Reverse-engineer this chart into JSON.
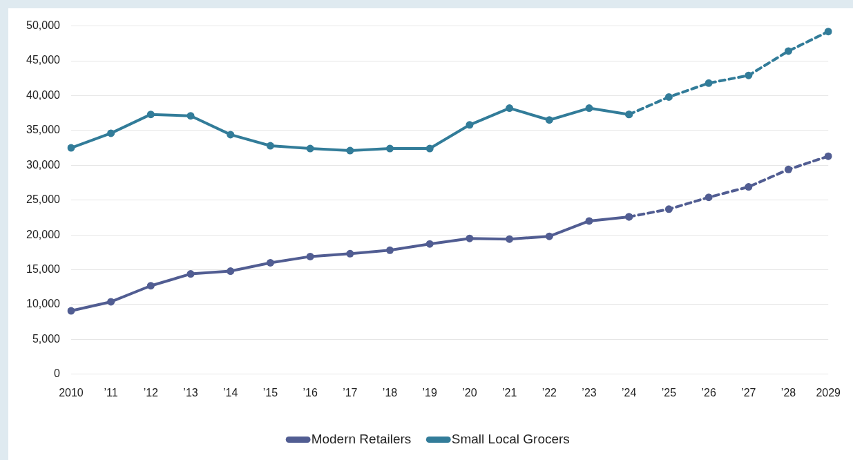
{
  "chart_data": {
    "type": "line",
    "categories": [
      "2010",
      "’11",
      "’12",
      "’13",
      "’14",
      "’15",
      "’16",
      "’17",
      "’18",
      "’19",
      "’20",
      "’21",
      "’22",
      "’23",
      "’24",
      "’25",
      "’26",
      "’27",
      "’28",
      "2029"
    ],
    "series": [
      {
        "name": "Modern Retailers",
        "color": "#515d92",
        "line_style": "solid",
        "values": [
          9100,
          10400,
          12700,
          14400,
          14800,
          16000,
          16900,
          17300,
          17800,
          18700,
          19500,
          19400,
          19800,
          22000,
          22600,
          null,
          null,
          null,
          null,
          null
        ]
      },
      {
        "color": "#515d92",
        "line_style": "dashed",
        "values": [
          null,
          null,
          null,
          null,
          null,
          null,
          null,
          null,
          null,
          null,
          null,
          null,
          null,
          null,
          22600,
          23700,
          25400,
          26900,
          29400,
          31300
        ]
      },
      {
        "name": "Small Local Grocers",
        "color": "#327c99",
        "line_style": "solid",
        "values": [
          32500,
          34600,
          37300,
          37100,
          34400,
          32800,
          32400,
          32100,
          32400,
          32400,
          35800,
          38200,
          36500,
          38200,
          37300,
          null,
          null,
          null,
          null,
          null
        ]
      },
      {
        "color": "#327c99",
        "line_style": "dashed",
        "values": [
          null,
          null,
          null,
          null,
          null,
          null,
          null,
          null,
          null,
          null,
          null,
          null,
          null,
          null,
          37300,
          39800,
          41800,
          42900,
          46400,
          49200
        ]
      }
    ],
    "ylim": [
      0,
      50000
    ],
    "yticks": [
      {
        "value": 0,
        "label": "0"
      },
      {
        "value": 5000,
        "label": "5,000"
      },
      {
        "value": 10000,
        "label": "10,000"
      },
      {
        "value": 15000,
        "label": "15,000"
      },
      {
        "value": 20000,
        "label": "20,000"
      },
      {
        "value": 25000,
        "label": "25,000"
      },
      {
        "value": 30000,
        "label": "30,000"
      },
      {
        "value": 35000,
        "label": "35,000"
      },
      {
        "value": 40000,
        "label": "40,000"
      },
      {
        "value": 45000,
        "label": "45,000"
      },
      {
        "value": 50000,
        "label": "50,000"
      }
    ],
    "grid": "y",
    "legend": "bottom",
    "marker": "circle"
  }
}
